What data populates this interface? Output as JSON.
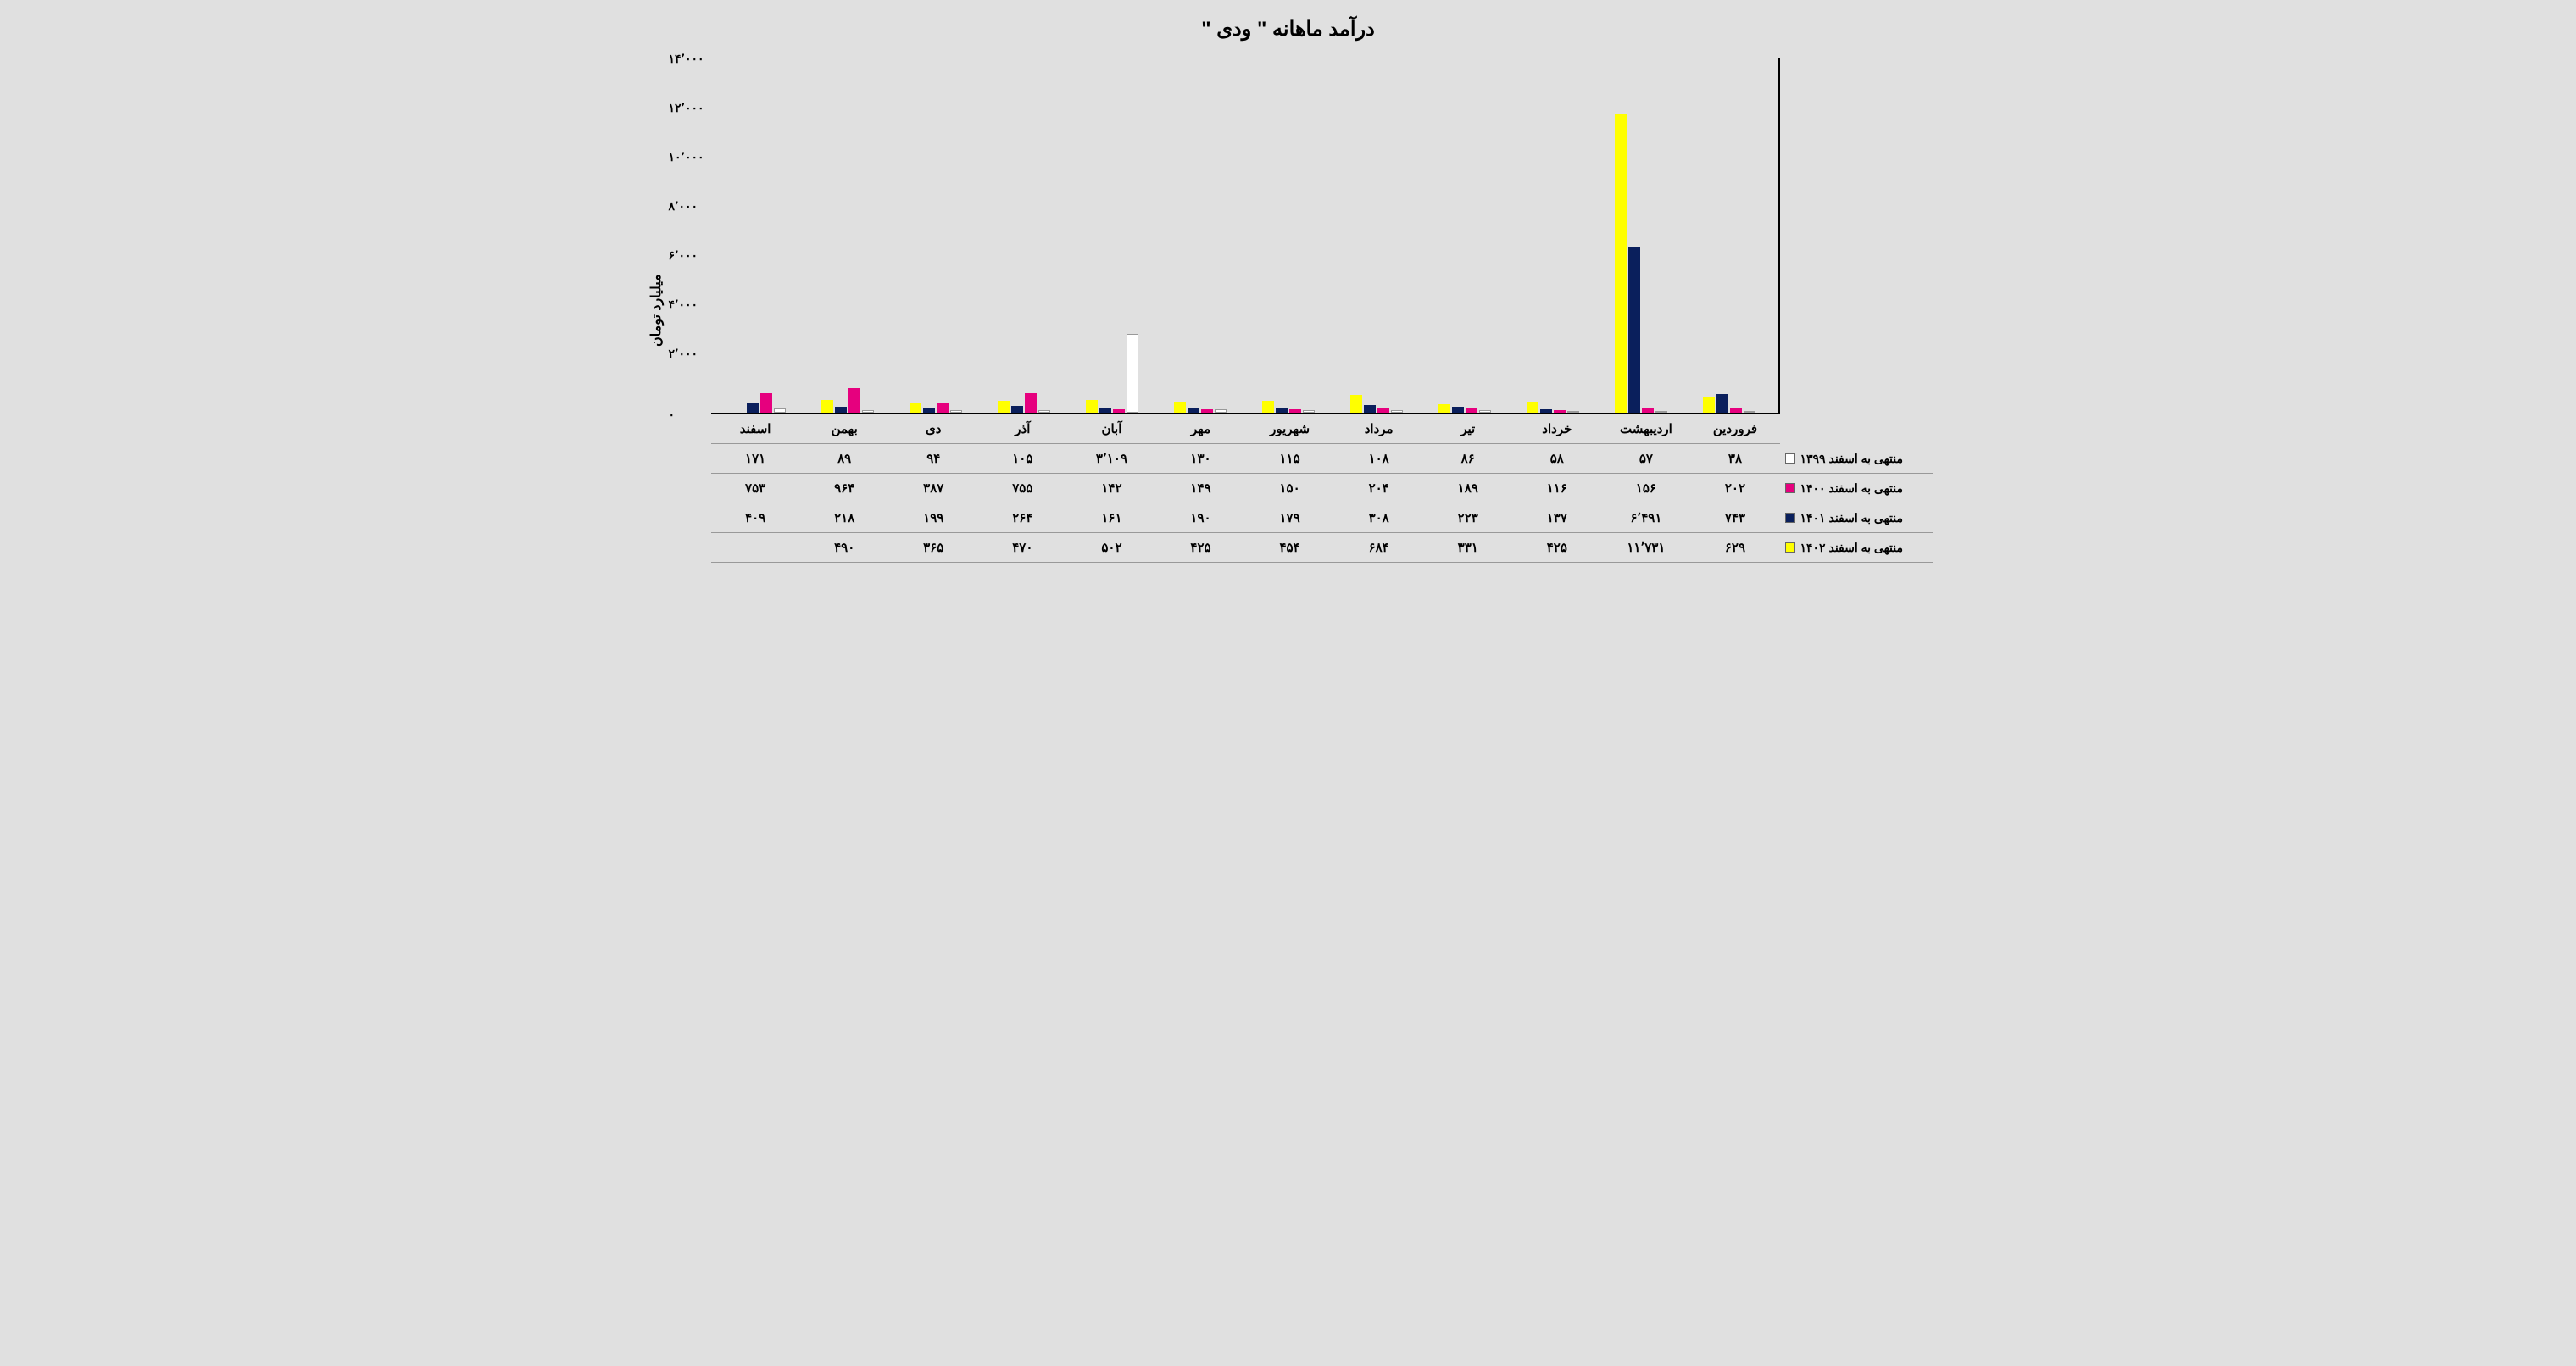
{
  "title": "درآمد ماهانه \" ودی \"",
  "y_axis_label": "میلیارد تومان",
  "y_ticks": [
    "۱۴٬۰۰۰",
    "۱۲٬۰۰۰",
    "۱۰٬۰۰۰",
    "۸٬۰۰۰",
    "۶٬۰۰۰",
    "۴٬۰۰۰",
    "۲٬۰۰۰",
    "۰"
  ],
  "y_max": 14000,
  "background_color": "#e0e0e0",
  "border_color": "#000000",
  "categories": [
    "فروردین",
    "اردیبهشت",
    "خرداد",
    "تیر",
    "مرداد",
    "شهریور",
    "مهر",
    "آبان",
    "آذر",
    "دی",
    "بهمن",
    "اسفند"
  ],
  "series": [
    {
      "label": "منتهی به اسفند ۱۳۹۹",
      "color": "#ffffff",
      "values_num": [
        38,
        57,
        58,
        86,
        108,
        115,
        130,
        3109,
        105,
        94,
        89,
        171
      ],
      "values_text": [
        "۳۸",
        "۵۷",
        "۵۸",
        "۸۶",
        "۱۰۸",
        "۱۱۵",
        "۱۳۰",
        "۳٬۱۰۹",
        "۱۰۵",
        "۹۴",
        "۸۹",
        "۱۷۱"
      ]
    },
    {
      "label": "منتهی به اسفند ۱۴۰۰",
      "color": "#e6007e",
      "values_num": [
        202,
        156,
        116,
        189,
        204,
        150,
        149,
        142,
        755,
        387,
        964,
        753
      ],
      "values_text": [
        "۲۰۲",
        "۱۵۶",
        "۱۱۶",
        "۱۸۹",
        "۲۰۴",
        "۱۵۰",
        "۱۴۹",
        "۱۴۲",
        "۷۵۵",
        "۳۸۷",
        "۹۶۴",
        "۷۵۳"
      ]
    },
    {
      "label": "منتهی به اسفند ۱۴۰۱",
      "color": "#0a1f5c",
      "values_num": [
        743,
        6491,
        137,
        223,
        308,
        179,
        190,
        161,
        264,
        199,
        218,
        409
      ],
      "values_text": [
        "۷۴۳",
        "۶٬۴۹۱",
        "۱۳۷",
        "۲۲۳",
        "۳۰۸",
        "۱۷۹",
        "۱۹۰",
        "۱۶۱",
        "۲۶۴",
        "۱۹۹",
        "۲۱۸",
        "۴۰۹"
      ]
    },
    {
      "label": "منتهی به اسفند ۱۴۰۲",
      "color": "#ffff00",
      "values_num": [
        629,
        11731,
        425,
        331,
        684,
        454,
        425,
        502,
        470,
        365,
        490,
        null
      ],
      "values_text": [
        "۶۲۹",
        "۱۱٬۷۳۱",
        "۴۲۵",
        "۳۳۱",
        "۶۸۴",
        "۴۵۴",
        "۴۲۵",
        "۵۰۲",
        "۴۷۰",
        "۳۶۵",
        "۴۹۰",
        ""
      ]
    }
  ]
}
